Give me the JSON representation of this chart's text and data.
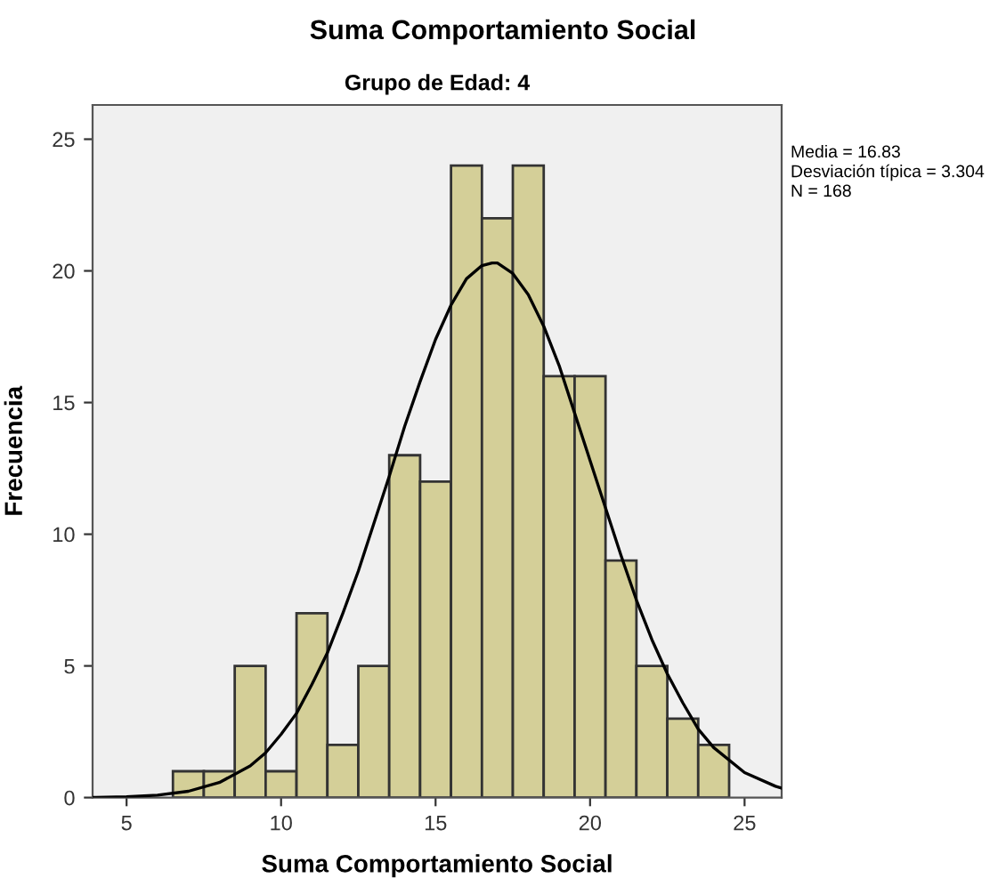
{
  "chart_data": {
    "type": "histogram",
    "title": "Suma Comportamiento Social",
    "subtitle": "Grupo de Edad: 4",
    "xlabel": "Suma Comportamiento Social",
    "ylabel": "Frecuencia",
    "bins": [
      6.5,
      7.5,
      8.5,
      9.5,
      10.5,
      11.5,
      12.5,
      13.5,
      14.5,
      15.5,
      16.5,
      17.5,
      18.5,
      19.5,
      20.5,
      21.5,
      22.5,
      23.5,
      24.5
    ],
    "series": [
      {
        "color": "#d4cf98",
        "values": [
          1,
          1,
          5,
          1,
          7,
          2,
          5,
          13,
          12,
          24,
          22,
          24,
          16,
          16,
          9,
          5,
          3,
          2
        ]
      },
      {
        "type": "line",
        "color": "#000000",
        "x": [
          3.9,
          4,
          5,
          6,
          7,
          8,
          9,
          9.5,
          10,
          10.5,
          11,
          11.5,
          12,
          12.5,
          13,
          13.5,
          14,
          14.5,
          15,
          15.5,
          16,
          16.5,
          16.83,
          17,
          17.5,
          18,
          18.5,
          19,
          19.5,
          20,
          20.5,
          21,
          21.5,
          22,
          22.5,
          23,
          23.5,
          24,
          25,
          26,
          26.2
        ],
        "values": [
          0.01,
          0.01,
          0.03,
          0.09,
          0.24,
          0.57,
          1.2,
          1.7,
          2.4,
          3.2,
          4.3,
          5.5,
          7.0,
          8.6,
          10.4,
          12.2,
          14.1,
          15.8,
          17.4,
          18.7,
          19.7,
          20.2,
          20.3,
          20.3,
          19.9,
          19.1,
          17.9,
          16.4,
          14.6,
          12.8,
          11.0,
          9.2,
          7.5,
          6.0,
          4.7,
          3.6,
          2.6,
          1.9,
          0.95,
          0.43,
          0.36
        ]
      }
    ],
    "xlim": [
      3.9,
      26.2
    ],
    "xticks": [
      5,
      10,
      15,
      20,
      25
    ],
    "ylim": [
      0,
      26.3
    ],
    "yticks": [
      0,
      5,
      10,
      15,
      20,
      25
    ],
    "grid": false,
    "legend": false,
    "annotations": [
      "Media = 16.83",
      "Desviación típica = 3.304",
      "N = 168"
    ]
  }
}
